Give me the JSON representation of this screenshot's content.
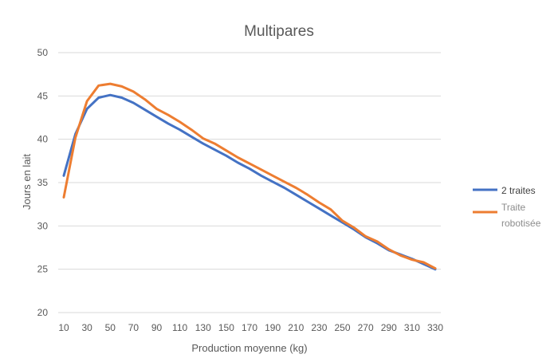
{
  "chart_data": {
    "type": "line",
    "title": "Multipares",
    "xlabel": "Production moyenne (kg)",
    "ylabel": "Jours en lait",
    "ylim": [
      20,
      50
    ],
    "yticks": [
      20,
      25,
      30,
      35,
      40,
      45,
      50
    ],
    "x": [
      10,
      20,
      30,
      40,
      50,
      60,
      70,
      80,
      90,
      100,
      110,
      120,
      130,
      140,
      150,
      160,
      170,
      180,
      190,
      200,
      210,
      220,
      230,
      240,
      250,
      260,
      270,
      280,
      290,
      300,
      310,
      320,
      330
    ],
    "xtick_labels": [
      "10",
      "30",
      "50",
      "70",
      "90",
      "110",
      "130",
      "150",
      "170",
      "190",
      "210",
      "230",
      "250",
      "270",
      "290",
      "310",
      "330"
    ],
    "grid": "horizontal",
    "legend_position": "right",
    "series": [
      {
        "name": "2 traites",
        "color": "#4472c4",
        "values": [
          35.8,
          40.6,
          43.5,
          44.8,
          45.1,
          44.8,
          44.2,
          43.4,
          42.6,
          41.8,
          41.1,
          40.3,
          39.5,
          38.8,
          38.1,
          37.3,
          36.6,
          35.8,
          35.1,
          34.4,
          33.6,
          32.8,
          32.0,
          31.2,
          30.4,
          29.6,
          28.7,
          28.0,
          27.2,
          26.7,
          26.2,
          25.6,
          25.0
        ]
      },
      {
        "name": "Traite robotisée",
        "color": "#ed7d31",
        "values": [
          33.3,
          40.2,
          44.4,
          46.2,
          46.4,
          46.1,
          45.5,
          44.6,
          43.5,
          42.8,
          42.0,
          41.1,
          40.1,
          39.5,
          38.7,
          37.9,
          37.2,
          36.5,
          35.8,
          35.1,
          34.4,
          33.6,
          32.7,
          31.9,
          30.6,
          29.8,
          28.8,
          28.2,
          27.3,
          26.6,
          26.1,
          25.8,
          25.1
        ]
      }
    ]
  }
}
